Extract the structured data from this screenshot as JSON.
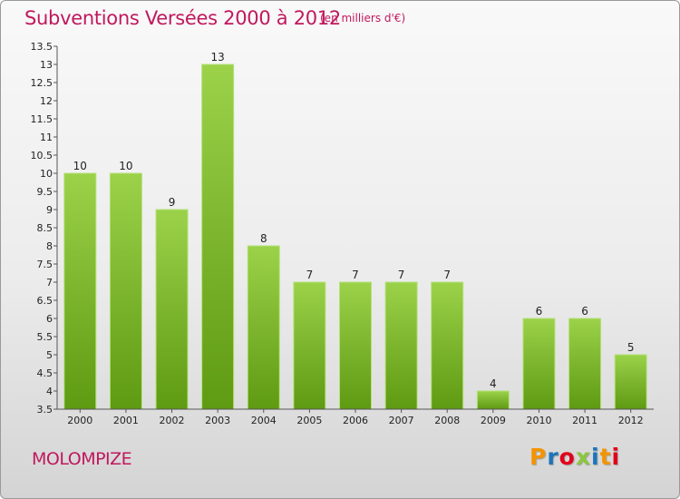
{
  "header": {
    "title": "Subventions Versées 2000 à 2012",
    "unit": "(en milliers d'€)"
  },
  "footer": {
    "commune": "MOLOMPIZE",
    "logo_letters": [
      "P",
      "r",
      "o",
      "x",
      "i",
      "t",
      "i"
    ],
    "logo_colors": [
      "#f29400",
      "#1b75bb",
      "#e2001a",
      "#8cc63f",
      "#1b75bb",
      "#f29400",
      "#e2001a"
    ]
  },
  "colors": {
    "title": "#c0185e",
    "bar_top": "#9bd24a",
    "bar_bottom": "#5e9a12"
  },
  "chart_data": {
    "type": "bar",
    "title": "Subventions Versées 2000 à 2012",
    "categories": [
      "2000",
      "2001",
      "2002",
      "2003",
      "2004",
      "2005",
      "2006",
      "2007",
      "2008",
      "2009",
      "2010",
      "2011",
      "2012"
    ],
    "values": [
      10,
      10,
      9,
      13,
      8,
      7,
      7,
      7,
      7,
      4,
      6,
      6,
      5
    ],
    "ylim": [
      3.5,
      13.5
    ],
    "yticks": [
      "3.5",
      "4",
      "4.5",
      "5",
      "5.5",
      "6",
      "6.5",
      "7",
      "7.5",
      "8",
      "8.5",
      "9",
      "9.5",
      "10",
      "10.5",
      "11",
      "11.5",
      "12",
      "12.5",
      "13",
      "13.5"
    ],
    "grid": false,
    "legend": "none"
  }
}
